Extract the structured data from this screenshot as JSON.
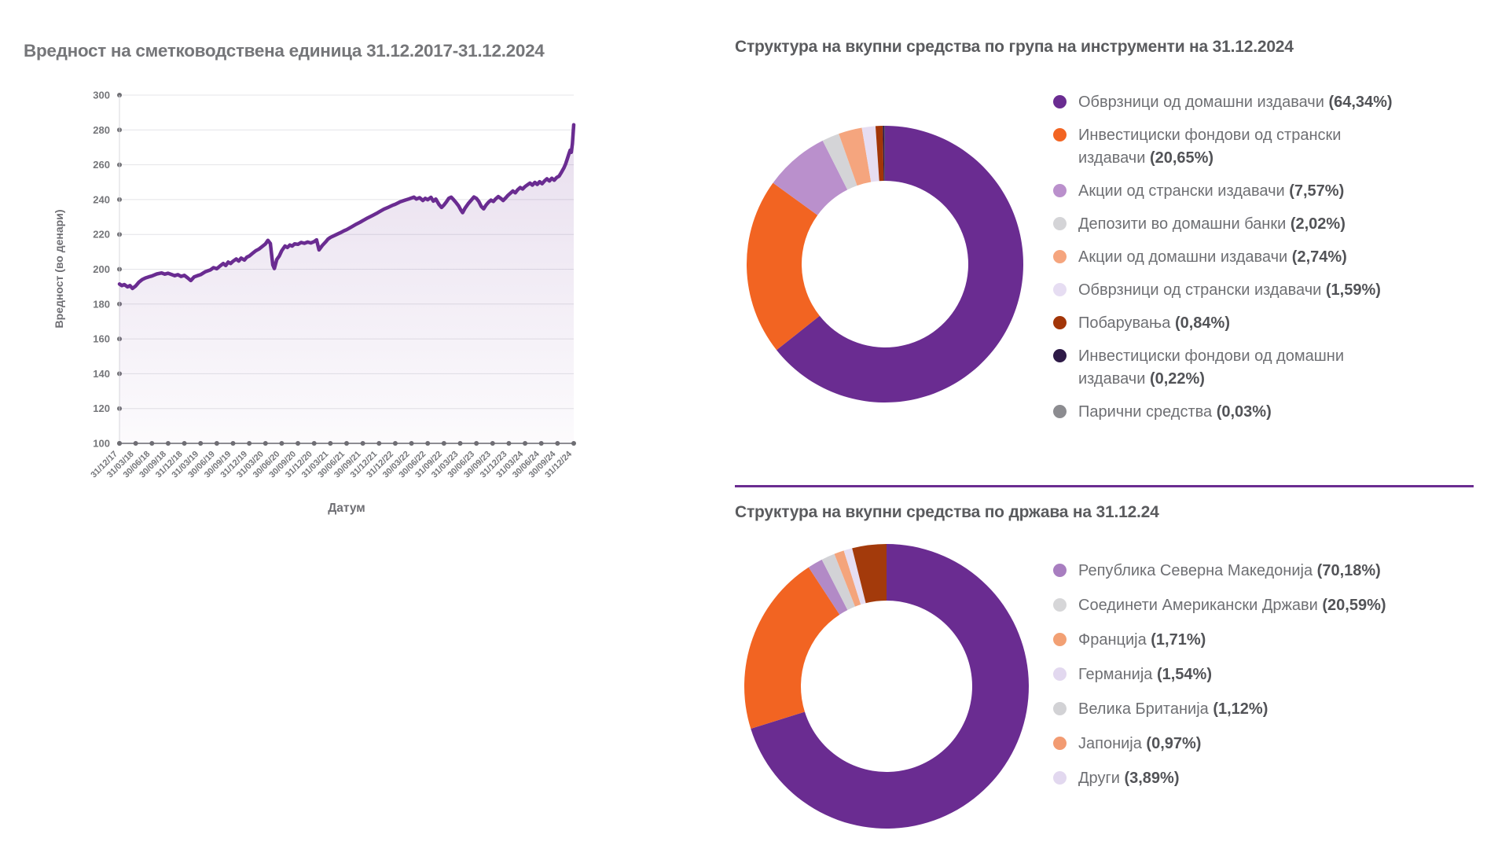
{
  "colors": {
    "accent_purple": "#6A2C91",
    "orange": "#F26422",
    "grid_line": "#E4E4E8",
    "axis_text": "#75767A",
    "tick_dot": "#6E6E73"
  },
  "chart_data": [
    {
      "type": "line",
      "title": "Вредност на сметководствена единица 31.12.2017-31.12.2024",
      "xlabel": "Датум",
      "ylabel": "Вредност (во денари)",
      "ylim": [
        100,
        300
      ],
      "y_ticks": [
        300,
        280,
        260,
        240,
        220,
        200,
        180,
        160,
        140,
        120,
        100
      ],
      "x_ticks": [
        "31/12/17",
        "31/03/18",
        "30/06/18",
        "30/09/18",
        "31/12/18",
        "31/03/19",
        "30/06/19",
        "30/09/19",
        "31/12/19",
        "31/03/20",
        "30/06/20",
        "30/09/20",
        "31/12/20",
        "31/03/21",
        "30/06/21",
        "30/09/21",
        "31/12/21",
        "31/12/22",
        "30/03/22",
        "30/06/22",
        "31/09/22",
        "31/03/23",
        "30/06/23",
        "30/09/23",
        "31/12/23",
        "31/03/24",
        "30/06/24",
        "30/09/24",
        "31/12/24"
      ],
      "grid": true,
      "line_color": "#6A2C91",
      "area_fill_top": "rgba(106,44,145,0.17)",
      "area_fill_bottom": "rgba(106,44,145,0.02)",
      "series": [
        [
          0,
          191.5
        ],
        [
          0.15,
          190.6
        ],
        [
          0.3,
          191.2
        ],
        [
          0.5,
          189.9
        ],
        [
          0.65,
          190.6
        ],
        [
          0.8,
          189.0
        ],
        [
          1,
          190.4
        ],
        [
          1.2,
          192.6
        ],
        [
          1.4,
          194.1
        ],
        [
          1.6,
          195.0
        ],
        [
          1.8,
          195.6
        ],
        [
          2,
          196.1
        ],
        [
          2.3,
          197.3
        ],
        [
          2.6,
          197.9
        ],
        [
          2.8,
          197.2
        ],
        [
          3,
          197.7
        ],
        [
          3.2,
          197.0
        ],
        [
          3.4,
          196.3
        ],
        [
          3.6,
          196.9
        ],
        [
          3.8,
          195.9
        ],
        [
          4,
          196.5
        ],
        [
          4.2,
          195.1
        ],
        [
          4.4,
          193.5
        ],
        [
          4.6,
          195.6
        ],
        [
          4.8,
          196.3
        ],
        [
          5,
          196.9
        ],
        [
          5.3,
          198.6
        ],
        [
          5.6,
          199.6
        ],
        [
          5.8,
          200.9
        ],
        [
          6,
          200.3
        ],
        [
          6.2,
          201.9
        ],
        [
          6.4,
          203.3
        ],
        [
          6.55,
          202.1
        ],
        [
          6.7,
          204.1
        ],
        [
          6.85,
          203.3
        ],
        [
          7,
          204.6
        ],
        [
          7.2,
          205.9
        ],
        [
          7.35,
          204.7
        ],
        [
          7.5,
          206.4
        ],
        [
          7.7,
          205.3
        ],
        [
          7.85,
          206.9
        ],
        [
          8,
          207.6
        ],
        [
          8.2,
          209.1
        ],
        [
          8.4,
          210.6
        ],
        [
          8.6,
          211.6
        ],
        [
          8.8,
          213.1
        ],
        [
          9,
          214.6
        ],
        [
          9.15,
          216.6
        ],
        [
          9.3,
          214.8
        ],
        [
          9.45,
          202.5
        ],
        [
          9.55,
          200.4
        ],
        [
          9.7,
          205.6
        ],
        [
          9.85,
          207.6
        ],
        [
          10,
          210.6
        ],
        [
          10.2,
          213.3
        ],
        [
          10.35,
          212.5
        ],
        [
          10.5,
          213.9
        ],
        [
          10.65,
          213.3
        ],
        [
          10.8,
          214.6
        ],
        [
          11,
          214.3
        ],
        [
          11.2,
          215.4
        ],
        [
          11.4,
          214.9
        ],
        [
          11.6,
          215.6
        ],
        [
          11.8,
          215.1
        ],
        [
          12,
          215.9
        ],
        [
          12.15,
          216.9
        ],
        [
          12.3,
          211.1
        ],
        [
          12.5,
          213.6
        ],
        [
          12.7,
          215.6
        ],
        [
          12.85,
          217.3
        ],
        [
          13,
          218.3
        ],
        [
          13.3,
          219.6
        ],
        [
          13.6,
          220.9
        ],
        [
          13.85,
          222.1
        ],
        [
          14,
          222.7
        ],
        [
          14.3,
          224.3
        ],
        [
          14.6,
          225.9
        ],
        [
          14.85,
          227.1
        ],
        [
          15,
          227.9
        ],
        [
          15.3,
          229.5
        ],
        [
          15.6,
          230.9
        ],
        [
          15.85,
          232.1
        ],
        [
          16,
          232.9
        ],
        [
          16.3,
          234.5
        ],
        [
          16.6,
          235.7
        ],
        [
          16.85,
          236.8
        ],
        [
          17,
          237.3
        ],
        [
          17.3,
          238.7
        ],
        [
          17.6,
          239.7
        ],
        [
          17.85,
          240.4
        ],
        [
          18,
          240.9
        ],
        [
          18.15,
          241.4
        ],
        [
          18.3,
          240.3
        ],
        [
          18.5,
          241.1
        ],
        [
          18.7,
          239.5
        ],
        [
          18.85,
          240.7
        ],
        [
          19,
          239.9
        ],
        [
          19.2,
          241.3
        ],
        [
          19.35,
          239.1
        ],
        [
          19.5,
          240.3
        ],
        [
          19.7,
          237.1
        ],
        [
          19.85,
          235.5
        ],
        [
          20,
          236.9
        ],
        [
          20.15,
          238.7
        ],
        [
          20.3,
          240.7
        ],
        [
          20.45,
          241.4
        ],
        [
          20.6,
          239.9
        ],
        [
          20.75,
          238.3
        ],
        [
          20.9,
          236.5
        ],
        [
          21.05,
          233.9
        ],
        [
          21.15,
          232.5
        ],
        [
          21.3,
          235.1
        ],
        [
          21.5,
          237.7
        ],
        [
          21.7,
          239.9
        ],
        [
          21.85,
          241.5
        ],
        [
          22,
          240.7
        ],
        [
          22.15,
          238.9
        ],
        [
          22.3,
          236.1
        ],
        [
          22.45,
          234.7
        ],
        [
          22.6,
          236.9
        ],
        [
          22.75,
          238.5
        ],
        [
          22.9,
          239.7
        ],
        [
          23.05,
          238.9
        ],
        [
          23.2,
          240.5
        ],
        [
          23.35,
          241.7
        ],
        [
          23.5,
          240.7
        ],
        [
          23.65,
          239.5
        ],
        [
          23.8,
          240.9
        ],
        [
          23.95,
          242.5
        ],
        [
          24.1,
          243.7
        ],
        [
          24.25,
          244.9
        ],
        [
          24.4,
          243.9
        ],
        [
          24.55,
          245.7
        ],
        [
          24.7,
          246.9
        ],
        [
          24.85,
          246.1
        ],
        [
          25,
          247.5
        ],
        [
          25.15,
          248.5
        ],
        [
          25.3,
          249.5
        ],
        [
          25.45,
          248.3
        ],
        [
          25.6,
          249.9
        ],
        [
          25.75,
          248.7
        ],
        [
          25.9,
          250.3
        ],
        [
          26.05,
          249.1
        ],
        [
          26.2,
          250.7
        ],
        [
          26.35,
          251.9
        ],
        [
          26.5,
          250.7
        ],
        [
          26.65,
          252.3
        ],
        [
          26.8,
          251.1
        ],
        [
          26.95,
          252.7
        ],
        [
          27.1,
          253.5
        ],
        [
          27.25,
          255.8
        ],
        [
          27.4,
          258.3
        ],
        [
          27.5,
          260.5
        ],
        [
          27.6,
          263.2
        ],
        [
          27.7,
          266.2
        ],
        [
          27.78,
          268.4
        ],
        [
          27.85,
          267.2
        ],
        [
          27.92,
          272.0
        ],
        [
          28,
          283.0
        ]
      ]
    },
    {
      "type": "pie",
      "title": "Структура на вкупни средства по група на инструменти на 31.12.2024",
      "legend_position": "right",
      "slices": [
        {
          "label": "Обврзници од домашни издавачи",
          "pct_label": "(64,34%)",
          "pct": 64.34,
          "slice_color": "#6A2C91",
          "dot_color": "#6A2C91"
        },
        {
          "label": "Инвестициски фондови од странски издавачи",
          "pct_label": "(20,65%)",
          "pct": 20.65,
          "slice_color": "#F26422",
          "dot_color": "#F26422"
        },
        {
          "label": "Акции од странски издавачи",
          "pct_label": "(7,57%)",
          "pct": 7.57,
          "slice_color": "#BA90CC",
          "dot_color": "#BA90CC"
        },
        {
          "label": "Депозити во домашни банки",
          "pct_label": "(2,02%)",
          "pct": 2.02,
          "slice_color": "#D4D4D7",
          "dot_color": "#D4D4D7"
        },
        {
          "label": "Акции од домашни издавачи",
          "pct_label": "(2,74%)",
          "pct": 2.74,
          "slice_color": "#F5A57E",
          "dot_color": "#F5A57E"
        },
        {
          "label": "Обврзници од странски издавачи",
          "pct_label": "(1,59%)",
          "pct": 1.59,
          "slice_color": "#E6DDF2",
          "dot_color": "#E6DDF2"
        },
        {
          "label": "Побарувања",
          "pct_label": "(0,84%)",
          "pct": 0.84,
          "slice_color": "#A23508",
          "dot_color": "#A23508"
        },
        {
          "label": "Инвестициски фондови од домашни издавачи",
          "pct_label": "(0,22%)",
          "pct": 0.22,
          "slice_color": "#2E1A47",
          "dot_color": "#2E1A47"
        },
        {
          "label": "Парични средства",
          "pct_label": "(0,03%)",
          "pct": 0.03,
          "slice_color": "#8C8C90",
          "dot_color": "#8C8C90"
        }
      ]
    },
    {
      "type": "pie",
      "title": "Структура на вкупни средства по држава на 31.12.24",
      "legend_position": "right",
      "slices": [
        {
          "label": "Република Северна Македонија",
          "pct_label": "(70,18%)",
          "pct": 70.18,
          "slice_color": "#6A2C91",
          "dot_color": "#A87EC0"
        },
        {
          "label": "Соединети Американски Држави",
          "pct_label": "(20,59%)",
          "pct": 20.59,
          "slice_color": "#F26422",
          "dot_color": "#D6D6D8"
        },
        {
          "label": "Франција",
          "pct_label": "(1,71%)",
          "pct": 1.71,
          "slice_color": "#B28AC6",
          "dot_color": "#F2A074"
        },
        {
          "label": "Германија",
          "pct_label": "(1,54%)",
          "pct": 1.54,
          "slice_color": "#D2D2D6",
          "dot_color": "#E2D8EF"
        },
        {
          "label": "Велика Британија",
          "pct_label": "(1,12%)",
          "pct": 1.12,
          "slice_color": "#F4A47C",
          "dot_color": "#D2D2D5"
        },
        {
          "label": "Јапонија",
          "pct_label": "(0,97%)",
          "pct": 0.97,
          "slice_color": "#E6DEF2",
          "dot_color": "#F29B72"
        },
        {
          "label": "Други",
          "pct_label": "(3,89%)",
          "pct": 3.89,
          "slice_color": "#A33A0B",
          "dot_color": "#E2D8EF"
        }
      ]
    }
  ]
}
